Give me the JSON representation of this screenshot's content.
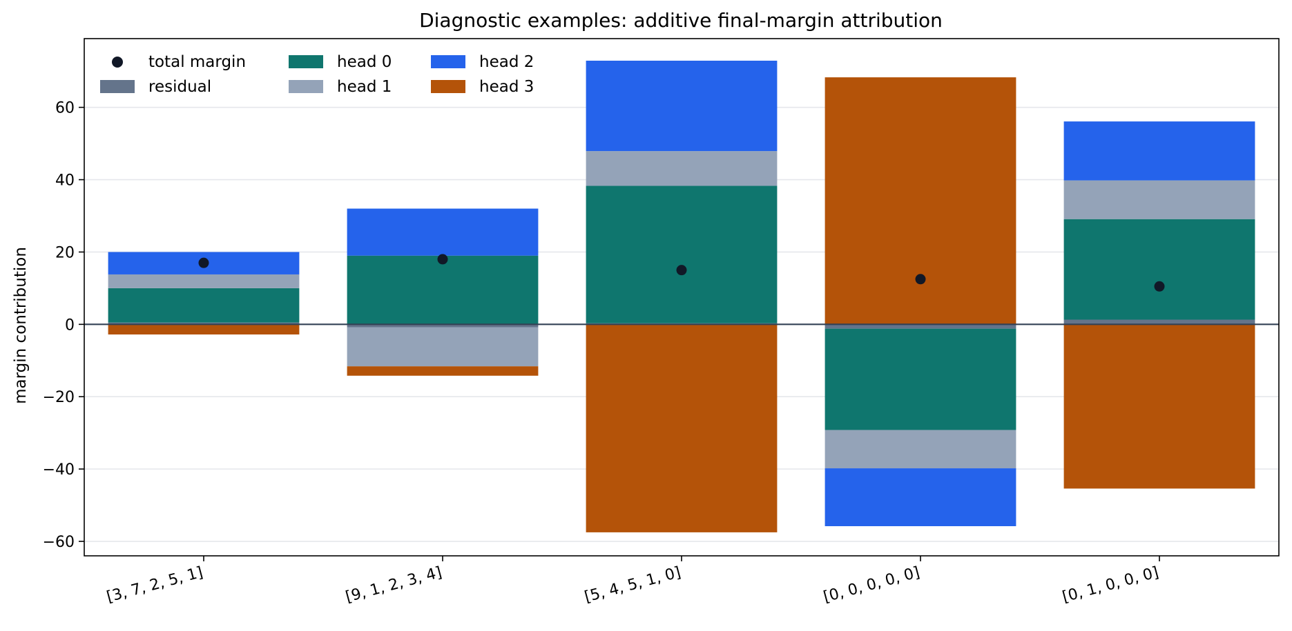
{
  "chart_data": {
    "type": "bar",
    "title": "Diagnostic examples: additive final-margin attribution",
    "xlabel": "",
    "ylabel": "margin contribution",
    "categories": [
      "[3, 7, 2, 5, 1]",
      "[9, 1, 2, 3, 4]",
      "[5, 4, 5, 1, 0]",
      "[0, 0, 0, 0, 0]",
      "[0, 1, 0, 0, 0]"
    ],
    "ylim": [
      -64,
      79
    ],
    "yticks": [
      -60,
      -40,
      -20,
      0,
      20,
      40,
      60
    ],
    "ytick_labels": [
      "−60",
      "−40",
      "−20",
      "0",
      "20",
      "40",
      "60"
    ],
    "grid": "horizontal",
    "stacked": true,
    "legend_position": "top-left",
    "series": [
      {
        "name": "residual",
        "color": "#64748b",
        "values": [
          0.5,
          -0.8,
          0.3,
          -1.2,
          1.3
        ]
      },
      {
        "name": "head 0",
        "color": "#0f766e",
        "values": [
          9.5,
          19.0,
          38.0,
          -28.0,
          27.8
        ]
      },
      {
        "name": "head 1",
        "color": "#94a3b8",
        "values": [
          3.8,
          -10.8,
          9.6,
          -10.6,
          10.7
        ]
      },
      {
        "name": "head 2",
        "color": "#2563eb",
        "values": [
          6.2,
          13.0,
          25.0,
          -16.0,
          16.3
        ]
      },
      {
        "name": "head 3",
        "color": "#b45309",
        "values": [
          -2.8,
          -2.6,
          -57.5,
          68.3,
          -45.4
        ]
      }
    ],
    "total_margin": {
      "name": "total margin",
      "color": "#111827",
      "values": [
        17.0,
        18.0,
        15.0,
        12.5,
        10.5
      ]
    },
    "legend": {
      "columns": [
        [
          "total margin",
          "residual"
        ],
        [
          "head 0",
          "head 1"
        ],
        [
          "head 2",
          "head 3"
        ]
      ]
    }
  }
}
